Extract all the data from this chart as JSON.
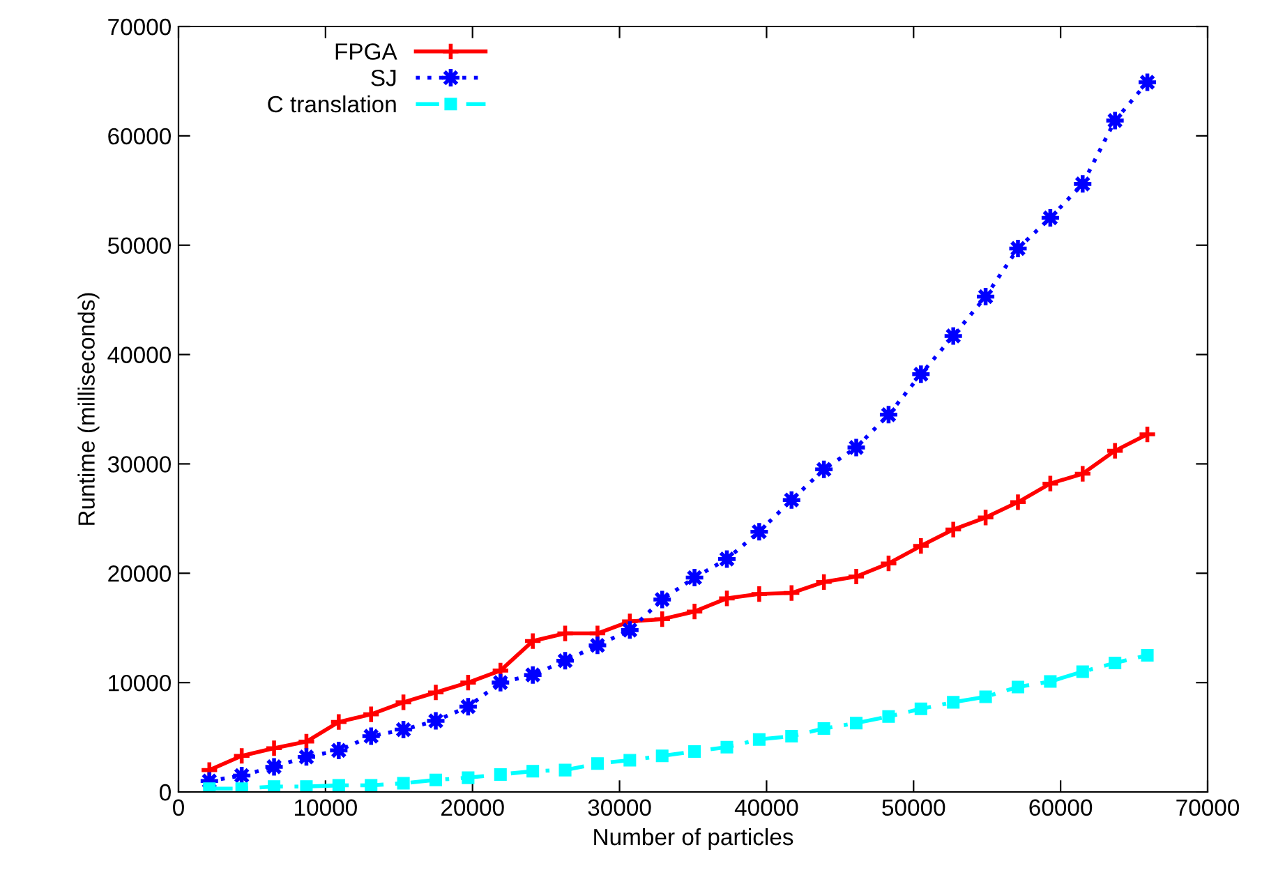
{
  "chart_data": {
    "type": "line",
    "xlabel": "Number of particles",
    "ylabel": "Runtime (milliseconds)",
    "x": [
      2100,
      4300,
      6500,
      8700,
      10900,
      13100,
      15300,
      17500,
      19700,
      21900,
      24100,
      26300,
      28500,
      30700,
      32900,
      35100,
      37300,
      39500,
      41700,
      43900,
      46100,
      48300,
      50500,
      52700,
      54900,
      57100,
      59300,
      61500,
      63700,
      65900
    ],
    "series": [
      {
        "name": "FPGA",
        "color": "#ff0000",
        "marker": "cross",
        "line_style": "solid",
        "values": [
          2000,
          3300,
          4000,
          4600,
          6400,
          7100,
          8200,
          9100,
          10000,
          11100,
          13800,
          14500,
          14500,
          15600,
          15800,
          16500,
          17700,
          18100,
          18200,
          19200,
          19700,
          20900,
          22500,
          24000,
          25100,
          26500,
          28200,
          29100,
          31200,
          32700
        ]
      },
      {
        "name": "SJ",
        "color": "#0000ff",
        "marker": "star",
        "line_style": "dotted",
        "values": [
          1000,
          1500,
          2300,
          3200,
          3800,
          5100,
          5700,
          6500,
          7800,
          10000,
          10700,
          12000,
          13400,
          14800,
          17600,
          19600,
          21300,
          23800,
          26700,
          29500,
          31500,
          34500,
          38200,
          41700,
          45300,
          49700,
          52500,
          55600,
          61400,
          64900
        ]
      },
      {
        "name": "C translation",
        "color": "#00ffff",
        "marker": "square",
        "line_style": "dashed",
        "values": [
          300,
          300,
          500,
          500,
          600,
          600,
          800,
          1100,
          1300,
          1600,
          1900,
          2000,
          2600,
          2900,
          3300,
          3700,
          4100,
          4800,
          5100,
          5800,
          6300,
          6900,
          7600,
          8200,
          8700,
          9600,
          10100,
          11000,
          11800,
          12500
        ]
      }
    ],
    "xlim": [
      0,
      70000
    ],
    "xticks": [
      0,
      10000,
      20000,
      30000,
      40000,
      50000,
      60000,
      70000
    ],
    "ylim": [
      0,
      70000
    ],
    "yticks": [
      0,
      10000,
      20000,
      30000,
      40000,
      50000,
      60000,
      70000
    ],
    "grid": false,
    "legend": "top left"
  }
}
